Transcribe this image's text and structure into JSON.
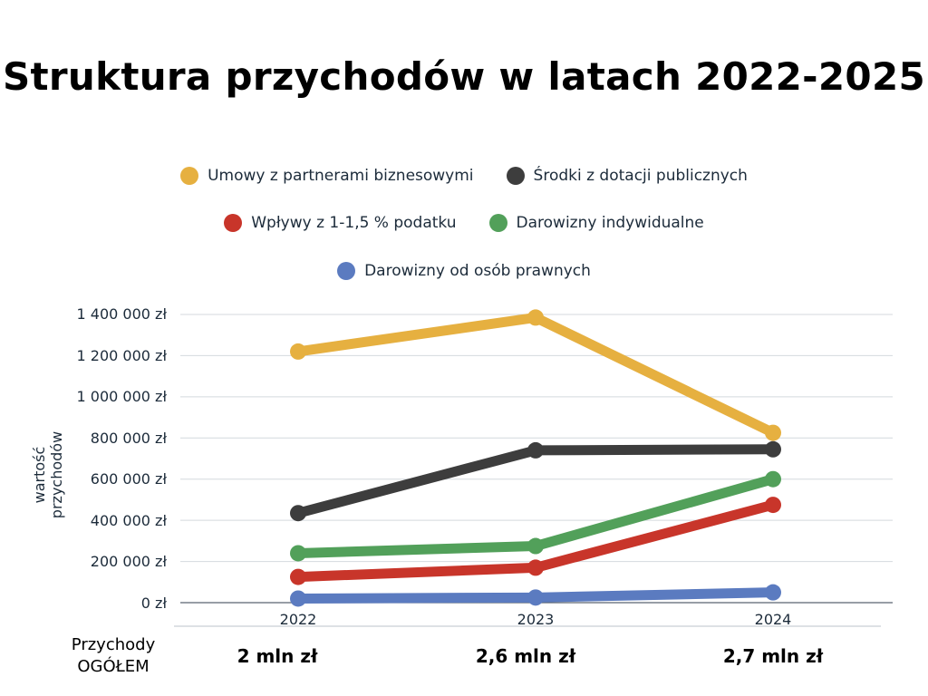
{
  "title": "Struktura przychodów w latach 2022-2025",
  "legend": [
    {
      "label": "Umowy z partnerami biznesowymi",
      "color": "#e6b040"
    },
    {
      "label": "Środki z dotacji publicznych",
      "color": "#3d3d3d"
    },
    {
      "label": "Wpływy z 1-1,5 % podatku",
      "color": "#c8352a"
    },
    {
      "label": "Darowizny indywidualne",
      "color": "#52a05a"
    },
    {
      "label": "Darowizny od osób prawnych",
      "color": "#5b7bc0"
    }
  ],
  "y_axis": {
    "label": "wartość przychodów",
    "ticks": [
      "1 400 000 zł",
      "1 200 000 zł",
      "1 000 000 zł",
      "800 000 zł",
      "600 000 zł",
      "400 000 zł",
      "200 000 zł",
      "0 zł"
    ]
  },
  "x_axis": {
    "ticks": [
      "2022",
      "2023",
      "2024"
    ]
  },
  "totals": {
    "label_line1": "Przychody",
    "label_line2": "OGÓŁEM",
    "values": [
      "2 mln zł",
      "2,6 mln zł",
      "2,7 mln zł"
    ]
  },
  "chart_data": {
    "type": "line",
    "title": "Struktura przychodów w latach 2022-2025",
    "xlabel": "",
    "ylabel": "wartość przychodów",
    "x": [
      "2022",
      "2023",
      "2024"
    ],
    "ylim": [
      0,
      1400000
    ],
    "grid": true,
    "legend_position": "top",
    "series": [
      {
        "name": "Umowy z partnerami biznesowymi",
        "color": "#e6b040",
        "values": [
          1220000,
          1385000,
          825000
        ]
      },
      {
        "name": "Środki z dotacji publicznych",
        "color": "#3d3d3d",
        "values": [
          435000,
          740000,
          745000
        ]
      },
      {
        "name": "Wpływy z 1-1,5 % podatku",
        "color": "#c8352a",
        "values": [
          125000,
          170000,
          475000
        ]
      },
      {
        "name": "Darowizny indywidualne",
        "color": "#52a05a",
        "values": [
          240000,
          275000,
          600000
        ]
      },
      {
        "name": "Darowizny od osób prawnych",
        "color": "#5b7bc0",
        "values": [
          20000,
          25000,
          50000
        ]
      }
    ],
    "annotations": {
      "row_label": "Przychody OGÓŁEM",
      "totals": [
        "2 mln zł",
        "2,6 mln zł",
        "2,7 mln zł"
      ]
    }
  }
}
